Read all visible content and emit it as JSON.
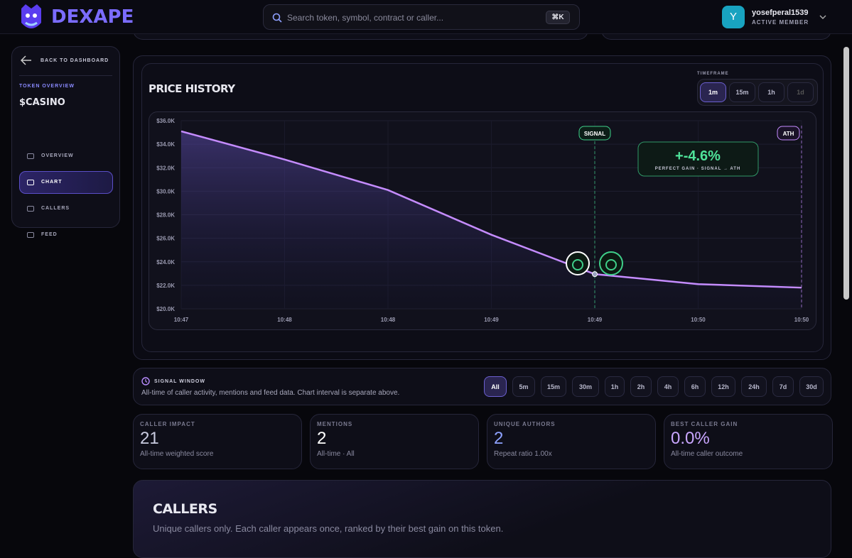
{
  "header": {
    "logo": "DEXAPE",
    "search_placeholder": "Search token, symbol, contract or caller...",
    "shortcut": "⌘K",
    "user_initial": "Y",
    "username": "yosefperal1539",
    "status": "ACTIVE MEMBER"
  },
  "sidebar": {
    "back": "BACK TO DASHBOARD",
    "section": "TOKEN OVERVIEW",
    "token": "$CASINO",
    "nav": [
      "OVERVIEW",
      "CHART",
      "CALLERS",
      "FEED"
    ],
    "active": 1
  },
  "timeframe": {
    "label": "TIMEFRAME",
    "options": [
      "1m",
      "15m",
      "1h",
      "1d"
    ],
    "active": 0
  },
  "chart_data": {
    "type": "line",
    "title": "PRICE HISTORY",
    "categories": [
      "10:47",
      "10:48",
      "10:48",
      "10:49",
      "10:49",
      "10:50",
      "10:50"
    ],
    "series": [
      {
        "name": "Price",
        "color": "#c58cff",
        "values": [
          35100,
          32700,
          30100,
          26300,
          22950,
          22100,
          21800
        ]
      }
    ],
    "ylim": [
      20000,
      36000
    ],
    "yticks": [
      {
        "value": 20000,
        "label": "$20.0K"
      },
      {
        "value": 22000,
        "label": "$22.0K"
      },
      {
        "value": 24000,
        "label": "$24.0K"
      },
      {
        "value": 26000,
        "label": "$26.0K"
      },
      {
        "value": 28000,
        "label": "$28.0K"
      },
      {
        "value": 30000,
        "label": "$30.0K"
      },
      {
        "value": 32000,
        "label": "$32.0K"
      },
      {
        "value": 34000,
        "label": "$34.0K"
      },
      {
        "value": 36000,
        "label": "$36.0K"
      }
    ],
    "grid": true,
    "annotations": {
      "signal": "SIGNAL",
      "ath": "ATH",
      "gain": "+-4.6%",
      "gain_caption": "PERFECT GAIN · SIGNAL → ATH"
    }
  },
  "signal_window": {
    "title": "SIGNAL WINDOW",
    "description": "All-time of caller activity, mentions and feed data. Chart interval is separate above.",
    "options": [
      "All",
      "5m",
      "15m",
      "30m",
      "1h",
      "2h",
      "4h",
      "6h",
      "12h",
      "24h",
      "7d",
      "30d"
    ],
    "active": 0
  },
  "stats": [
    {
      "label": "CALLER IMPACT",
      "value": "21",
      "caption": "All-time weighted score",
      "color": "#c9cbe0"
    },
    {
      "label": "MENTIONS",
      "value": "2",
      "caption": "All-time · All",
      "color": "#ffffff"
    },
    {
      "label": "UNIQUE AUTHORS",
      "value": "2",
      "caption": "Repeat ratio 1.00x",
      "color": "#8ea2ff"
    },
    {
      "label": "BEST CALLER GAIN",
      "value": "0.0%",
      "caption": "All-time caller outcome",
      "color": "#c9a6ff"
    }
  ],
  "callers": {
    "title": "CALLERS",
    "subtitle": "Unique callers only. Each caller appears once, ranked by their best gain on this token."
  }
}
